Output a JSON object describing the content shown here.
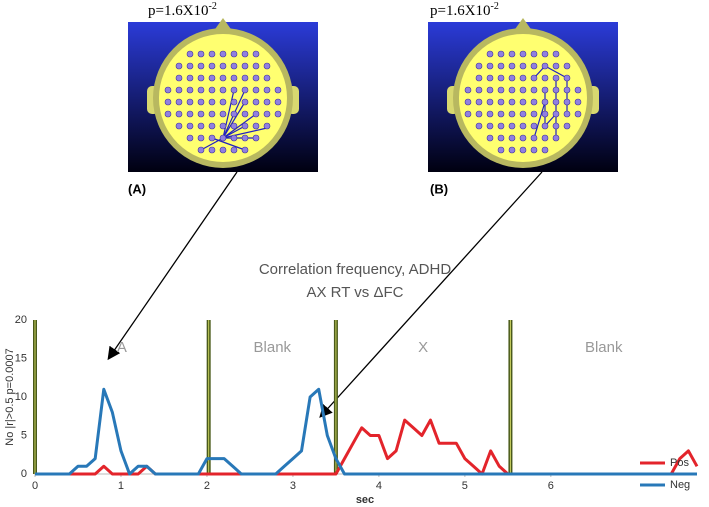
{
  "panels": [
    {
      "p_text": "p=1.6X10",
      "p_exponent": "-2",
      "label": "(A)"
    },
    {
      "p_text": "p=1.6X10",
      "p_exponent": "-2",
      "label": "(B)"
    }
  ],
  "chart_data": {
    "type": "line",
    "title": [
      "Correlation frequency, ADHD",
      "AX RT vs ΔFC"
    ],
    "x_label": "sec",
    "y_label": "No |r|>0.5 p=0.0007",
    "x": [
      0,
      0.1,
      0.2,
      0.3,
      0.4,
      0.5,
      0.6,
      0.7,
      0.8,
      0.9,
      1,
      1.1,
      1.2,
      1.3,
      1.4,
      1.5,
      1.6,
      1.7,
      1.8,
      1.9,
      2,
      2.1,
      2.2,
      2.3,
      2.4,
      2.5,
      2.6,
      2.7,
      2.8,
      2.9,
      3,
      3.1,
      3.2,
      3.3,
      3.4,
      3.5,
      3.6,
      3.7,
      3.8,
      3.9,
      4,
      4.1,
      4.2,
      4.3,
      4.4,
      4.5,
      4.6,
      4.7,
      4.8,
      4.9,
      5,
      5.1,
      5.2,
      5.3,
      5.4,
      5.5,
      5.6,
      5.7,
      5.8,
      5.9,
      6,
      6.1,
      6.2,
      6.3,
      6.4,
      6.5,
      6.6,
      6.7,
      6.8,
      6.9,
      7,
      7.1,
      7.2,
      7.3,
      7.4,
      7.5,
      7.6,
      7.7
    ],
    "series": [
      {
        "name": "Pos",
        "color": "#e3242b",
        "values": [
          0,
          0,
          0,
          0,
          0,
          0,
          0,
          0,
          1,
          0,
          0,
          0,
          0,
          1,
          0,
          0,
          0,
          0,
          0,
          0,
          0,
          0,
          0,
          0,
          0,
          0,
          0,
          0,
          0,
          0,
          0,
          0,
          0,
          0,
          0,
          0,
          2,
          4,
          6,
          5,
          5,
          2,
          3,
          7,
          6,
          5,
          7,
          4,
          4,
          4,
          2,
          1,
          0,
          3,
          1,
          0,
          0,
          0,
          0,
          0,
          0,
          0,
          0,
          0,
          0,
          0,
          0,
          0,
          0,
          0,
          0,
          0,
          0,
          0,
          0,
          2,
          3,
          1
        ]
      },
      {
        "name": "Neg",
        "color": "#2878b8",
        "values": [
          0,
          0,
          0,
          0,
          0,
          1,
          1,
          2,
          11,
          8,
          3,
          0,
          1,
          1,
          0,
          0,
          0,
          0,
          0,
          0,
          2,
          2,
          2,
          1,
          0,
          0,
          0,
          0,
          0,
          1,
          2,
          3,
          10,
          11,
          5,
          2,
          0,
          0,
          0,
          0,
          0,
          0,
          0,
          0,
          0,
          0,
          0,
          0,
          0,
          0,
          0,
          0,
          0,
          0,
          0,
          0,
          0,
          0,
          0,
          0,
          0,
          0,
          0,
          0,
          0,
          0,
          0,
          0,
          0,
          0,
          0,
          0,
          0,
          0,
          0,
          0,
          0,
          0
        ]
      }
    ],
    "markers": [
      0,
      2.02,
      3.5,
      5.53
    ],
    "phases": [
      "A",
      "Blank",
      "X",
      "Blank"
    ],
    "marker_color": "#4a5a1a",
    "xlim": [
      0,
      7.7
    ],
    "ylim": [
      0,
      20
    ],
    "xticks": [
      0,
      1,
      2,
      3,
      4,
      5,
      6
    ],
    "yticks": [
      0,
      5,
      10,
      15,
      20
    ],
    "grid": false,
    "legend": "right"
  }
}
